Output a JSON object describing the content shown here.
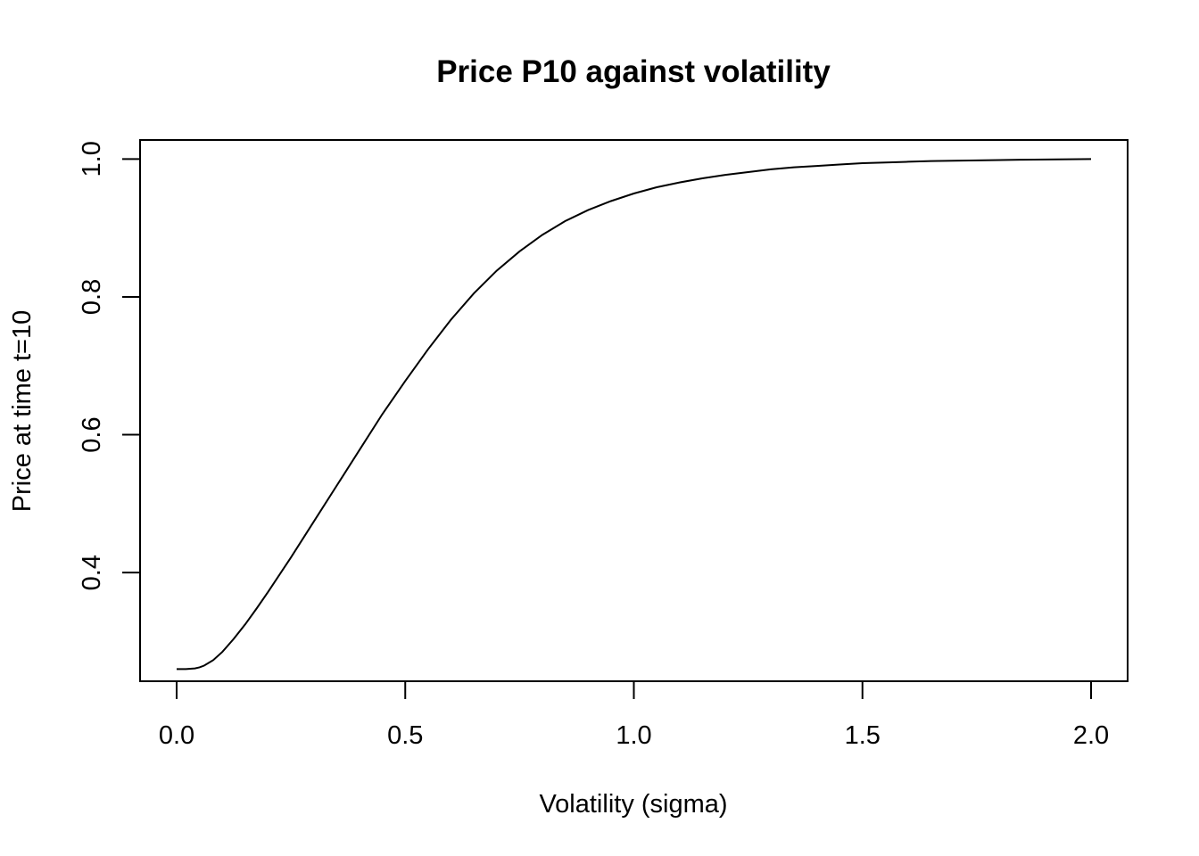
{
  "chart_data": {
    "type": "line",
    "title": "Price P10 against volatility",
    "xlabel": "Volatility (sigma)",
    "ylabel": "Price at time t=10",
    "xlim": [
      -0.08,
      2.08
    ],
    "ylim": [
      0.2424,
      1.0276
    ],
    "x_ticks": [
      0.0,
      0.5,
      1.0,
      1.5,
      2.0
    ],
    "x_tick_labels": [
      "0.0",
      "0.5",
      "1.0",
      "1.5",
      "2.0"
    ],
    "y_ticks": [
      0.4,
      0.6,
      0.8,
      1.0
    ],
    "y_tick_labels": [
      "0.4",
      "0.6",
      "0.8",
      "1.0"
    ],
    "grid": false,
    "color": "#000000",
    "series": [
      {
        "x": [
          0.0,
          0.02,
          0.04,
          0.05,
          0.06,
          0.08,
          0.1,
          0.125,
          0.15,
          0.175,
          0.2,
          0.25,
          0.3,
          0.35,
          0.4,
          0.45,
          0.5,
          0.55,
          0.6,
          0.65,
          0.7,
          0.75,
          0.8,
          0.85,
          0.9,
          0.95,
          1.0,
          1.05,
          1.1,
          1.15,
          1.2,
          1.25,
          1.3,
          1.35,
          1.4,
          1.45,
          1.5,
          1.55,
          1.6,
          1.65,
          1.7,
          1.75,
          1.8,
          1.85,
          1.9,
          1.95,
          2.0
        ],
        "values": [
          0.26,
          0.26,
          0.261,
          0.2625,
          0.265,
          0.273,
          0.285,
          0.304,
          0.325,
          0.348,
          0.372,
          0.422,
          0.474,
          0.526,
          0.578,
          0.63,
          0.678,
          0.724,
          0.767,
          0.805,
          0.838,
          0.866,
          0.89,
          0.91,
          0.926,
          0.939,
          0.95,
          0.959,
          0.966,
          0.972,
          0.977,
          0.981,
          0.985,
          0.988,
          0.99,
          0.992,
          0.994,
          0.995,
          0.996,
          0.997,
          0.9975,
          0.998,
          0.9985,
          0.999,
          0.9993,
          0.9996,
          1.0
        ]
      }
    ]
  }
}
